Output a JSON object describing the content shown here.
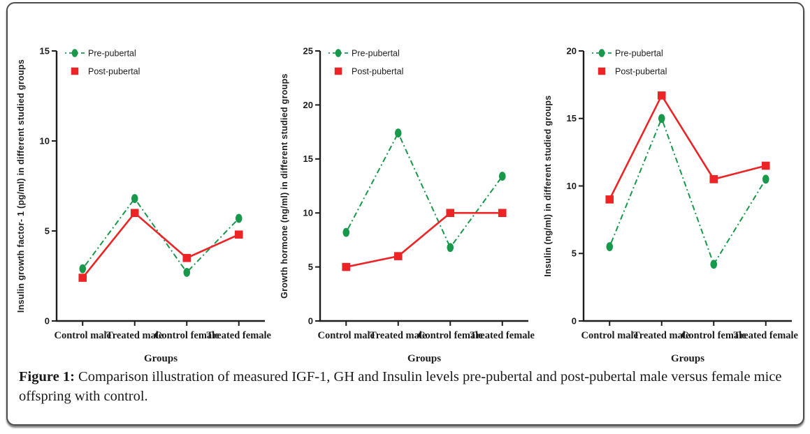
{
  "caption": {
    "label": "Figure 1:",
    "text": " Comparison illustration of measured IGF-1, GH and Insulin levels pre-pubertal and post-pubertal male versus female mice offspring with control."
  },
  "palette": {
    "pre_pubertal_green": "#17984a",
    "post_pubertal_red": "#ec2426",
    "ink": "#1d1d1d",
    "card_border": "#4d4d4d"
  },
  "legend": {
    "items": [
      "Pre-pubertal",
      "Post-pubertal"
    ]
  },
  "chart_data": [
    {
      "type": "line",
      "title": "",
      "categories": [
        "Control male",
        "Treated male",
        "Control female",
        "Treated female"
      ],
      "xlabel": "Groups",
      "ylabel": "Insulin growth factor- 1 (pg/ml) in different studied groups",
      "ylim": [
        0,
        15
      ],
      "yticks": [
        0,
        5,
        10,
        15
      ],
      "grid": false,
      "legend_position": "top-left",
      "series": [
        {
          "name": "Pre-pubertal",
          "color": "#17984a",
          "marker": "ellipse",
          "line_style": "dash-dot",
          "values": [
            2.9,
            6.8,
            2.7,
            5.7
          ]
        },
        {
          "name": "Post-pubertal",
          "color": "#ec2426",
          "marker": "square",
          "line_style": "solid",
          "values": [
            2.4,
            6.0,
            3.5,
            4.8
          ]
        }
      ]
    },
    {
      "type": "line",
      "title": "",
      "categories": [
        "Control male",
        "Treated male",
        "Control female",
        "Treated female"
      ],
      "xlabel": "Groups",
      "ylabel": "Growth hormone (ng/ml) in different studied groups",
      "ylim": [
        0,
        25
      ],
      "yticks": [
        0,
        5,
        10,
        15,
        20,
        25
      ],
      "grid": false,
      "legend_position": "top-left",
      "series": [
        {
          "name": "Pre-pubertal",
          "color": "#17984a",
          "marker": "ellipse",
          "line_style": "dash-dot",
          "values": [
            8.2,
            17.4,
            6.8,
            13.4
          ]
        },
        {
          "name": "Post-pubertal",
          "color": "#ec2426",
          "marker": "square",
          "line_style": "solid",
          "values": [
            5.0,
            6.0,
            10.0,
            10.0
          ]
        }
      ]
    },
    {
      "type": "line",
      "title": "",
      "categories": [
        "Control male",
        "Treated male",
        "Control female",
        "Treated female"
      ],
      "xlabel": "Groups",
      "ylabel": "Insulin (ng/ml) in different studied groups",
      "ylim": [
        0,
        20
      ],
      "yticks": [
        0,
        5,
        10,
        15,
        20
      ],
      "grid": false,
      "legend_position": "top-left",
      "series": [
        {
          "name": "Pre-pubertal",
          "color": "#17984a",
          "marker": "ellipse",
          "line_style": "dash-dot",
          "values": [
            5.5,
            15.0,
            4.2,
            10.5
          ]
        },
        {
          "name": "Post-pubertal",
          "color": "#ec2426",
          "marker": "square",
          "line_style": "solid",
          "values": [
            9.0,
            16.7,
            10.5,
            11.5
          ]
        }
      ]
    }
  ]
}
